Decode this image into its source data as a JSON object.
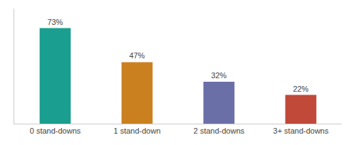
{
  "chart_data": {
    "type": "bar",
    "categories": [
      "0 stand-downs",
      "1 stand-down",
      "2 stand-downs",
      "3+ stand-downs"
    ],
    "values": [
      73,
      47,
      32,
      22
    ],
    "value_labels": [
      "73%",
      "47%",
      "32%",
      "22%"
    ],
    "data_labels": true,
    "colors": [
      "#1a9e8f",
      "#cb8020",
      "#6b6fa8",
      "#c0493a"
    ],
    "ylim": [
      0,
      88
    ],
    "tick_labels": "x",
    "grid": false
  }
}
